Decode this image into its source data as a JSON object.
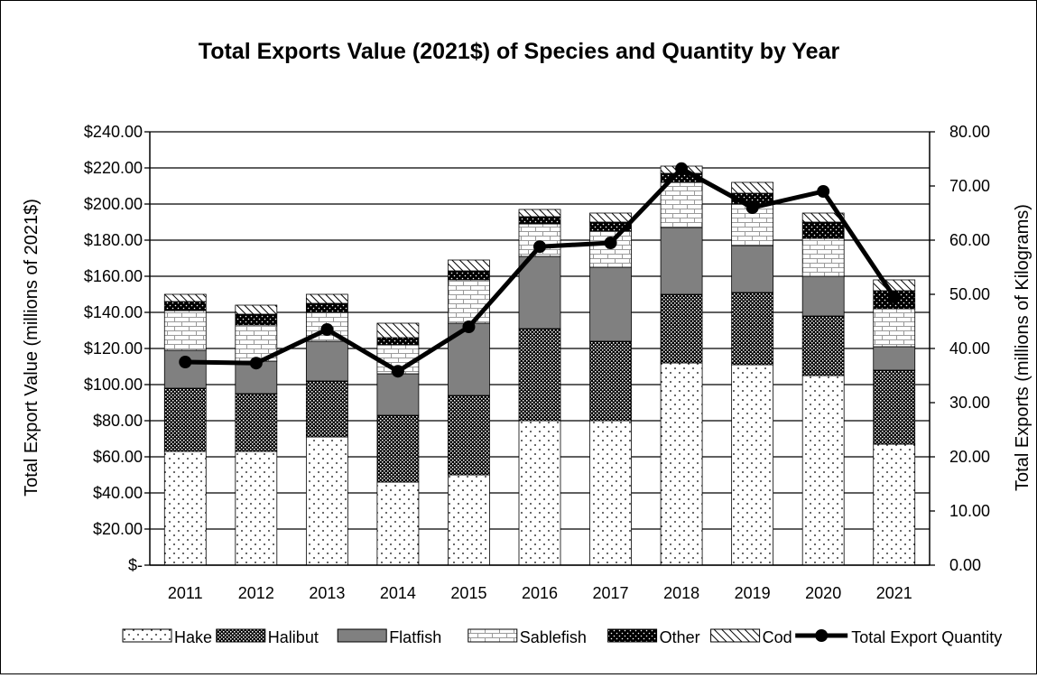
{
  "chart_data": {
    "type": "bar",
    "title": "Total Exports Value (2021$) of Species and Quantity by Year",
    "ylabel": "Total Export Value (millions of 2021$)",
    "ylabel_right": "Total Exports (millions of Kilograms)",
    "ylim": [
      0,
      240
    ],
    "ylim_right": [
      0,
      80
    ],
    "y_ticks": [
      "$-",
      "$20.00",
      "$40.00",
      "$60.00",
      "$80.00",
      "$100.00",
      "$120.00",
      "$140.00",
      "$160.00",
      "$180.00",
      "$200.00",
      "$220.00",
      "$240.00"
    ],
    "y_ticks_right": [
      "0.00",
      "10.00",
      "20.00",
      "30.00",
      "40.00",
      "50.00",
      "60.00",
      "70.00",
      "80.00"
    ],
    "grid": true,
    "legend_position": "bottom",
    "categories": [
      "2011",
      "2012",
      "2013",
      "2014",
      "2015",
      "2016",
      "2017",
      "2018",
      "2019",
      "2020",
      "2021"
    ],
    "series": [
      {
        "name": "Hake",
        "pattern": "dots",
        "values": [
          63,
          63,
          71,
          46,
          50,
          80,
          80,
          112,
          111,
          105,
          67
        ]
      },
      {
        "name": "Halibut",
        "pattern": "dense",
        "values": [
          35,
          32,
          31,
          37,
          44,
          51,
          44,
          38,
          40,
          33,
          41
        ]
      },
      {
        "name": "Flatfish",
        "pattern": "solid-gray",
        "values": [
          21,
          18,
          22,
          23,
          40,
          40,
          41,
          37,
          26,
          22,
          13
        ]
      },
      {
        "name": "Sablefish",
        "pattern": "brick",
        "values": [
          22,
          20,
          16,
          16,
          24,
          18,
          20,
          25,
          23,
          21,
          21
        ]
      },
      {
        "name": "Other",
        "pattern": "black-dots",
        "values": [
          5,
          6,
          5,
          4,
          5,
          4,
          5,
          5,
          6,
          9,
          10
        ]
      },
      {
        "name": "Cod",
        "pattern": "hatch",
        "values": [
          4,
          5,
          5,
          8,
          6,
          4,
          5,
          4,
          6,
          5,
          6
        ]
      }
    ],
    "line_series": {
      "name": "Total Export Quantity",
      "axis": "right",
      "values": [
        37.5,
        37.3,
        43.5,
        35.8,
        44.0,
        58.8,
        59.5,
        73.2,
        66.0,
        69.0,
        49.5
      ]
    }
  },
  "colors": {
    "line": "#000000",
    "flatfish": "#808080",
    "bar_outline": "#000000"
  }
}
